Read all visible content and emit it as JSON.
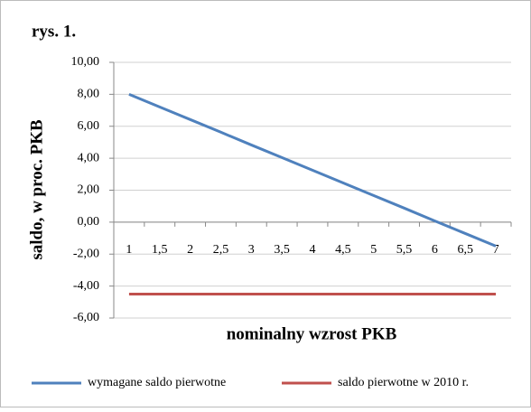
{
  "chart_data": {
    "type": "line",
    "title": "rys. 1.",
    "y_label": "saldo, w proc. PKB",
    "x_label": "nominalny wzrost PKB",
    "categories": [
      "1",
      "1,5",
      "2",
      "2,5",
      "3",
      "3,5",
      "4",
      "4,5",
      "5",
      "5,5",
      "6",
      "6,5",
      "7"
    ],
    "series": [
      {
        "name": "wymagane saldo pierwotne",
        "color": "#4f81bd",
        "values": [
          8.0,
          7.21,
          6.42,
          5.63,
          4.83,
          4.04,
          3.25,
          2.46,
          1.67,
          0.88,
          0.08,
          -0.71,
          -1.5
        ]
      },
      {
        "name": "saldo pierwotne w 2010 r.",
        "color": "#c0504d",
        "values": [
          -4.5,
          -4.5,
          -4.5,
          -4.5,
          -4.5,
          -4.5,
          -4.5,
          -4.5,
          -4.5,
          -4.5,
          -4.5,
          -4.5,
          -4.5
        ]
      }
    ],
    "ylim": [
      -6,
      10
    ],
    "yticks": [
      {
        "value": -6,
        "label": "-6,00"
      },
      {
        "value": -4,
        "label": "-4,00"
      },
      {
        "value": -2,
        "label": "-2,00"
      },
      {
        "value": 0,
        "label": "0,00"
      },
      {
        "value": 2,
        "label": "2,00"
      },
      {
        "value": 4,
        "label": "4,00"
      },
      {
        "value": 6,
        "label": "6,00"
      },
      {
        "value": 8,
        "label": "8,00"
      },
      {
        "value": 10,
        "label": "10,00"
      }
    ],
    "grid": true,
    "legend": "bottom"
  }
}
